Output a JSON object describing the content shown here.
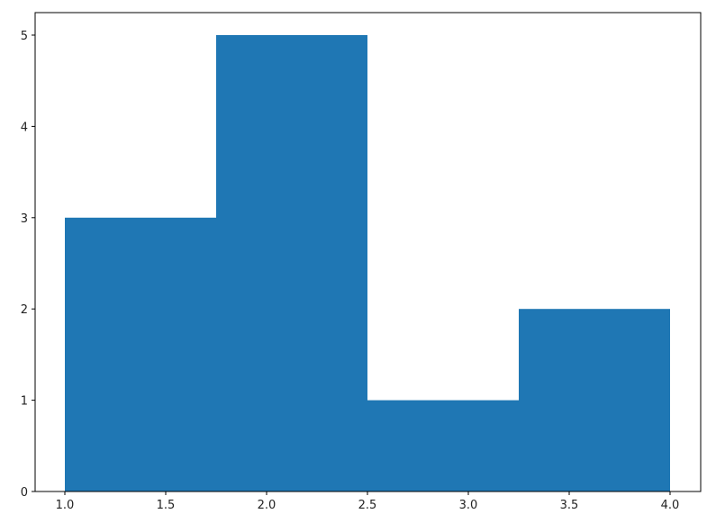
{
  "chart_data": {
    "type": "bar",
    "subtype": "histogram",
    "bin_edges": [
      1.0,
      1.75,
      2.5,
      3.25,
      4.0
    ],
    "values": [
      3,
      5,
      1,
      2
    ],
    "xlim": [
      0.85,
      4.15
    ],
    "ylim": [
      0,
      5.25
    ],
    "xticks": [
      "1.0",
      "1.5",
      "2.0",
      "2.5",
      "3.0",
      "3.5",
      "4.0"
    ],
    "yticks": [
      "0",
      "1",
      "2",
      "3",
      "4",
      "5"
    ],
    "title": "",
    "xlabel": "",
    "ylabel": "",
    "grid": false,
    "color": "#1f77b4"
  }
}
